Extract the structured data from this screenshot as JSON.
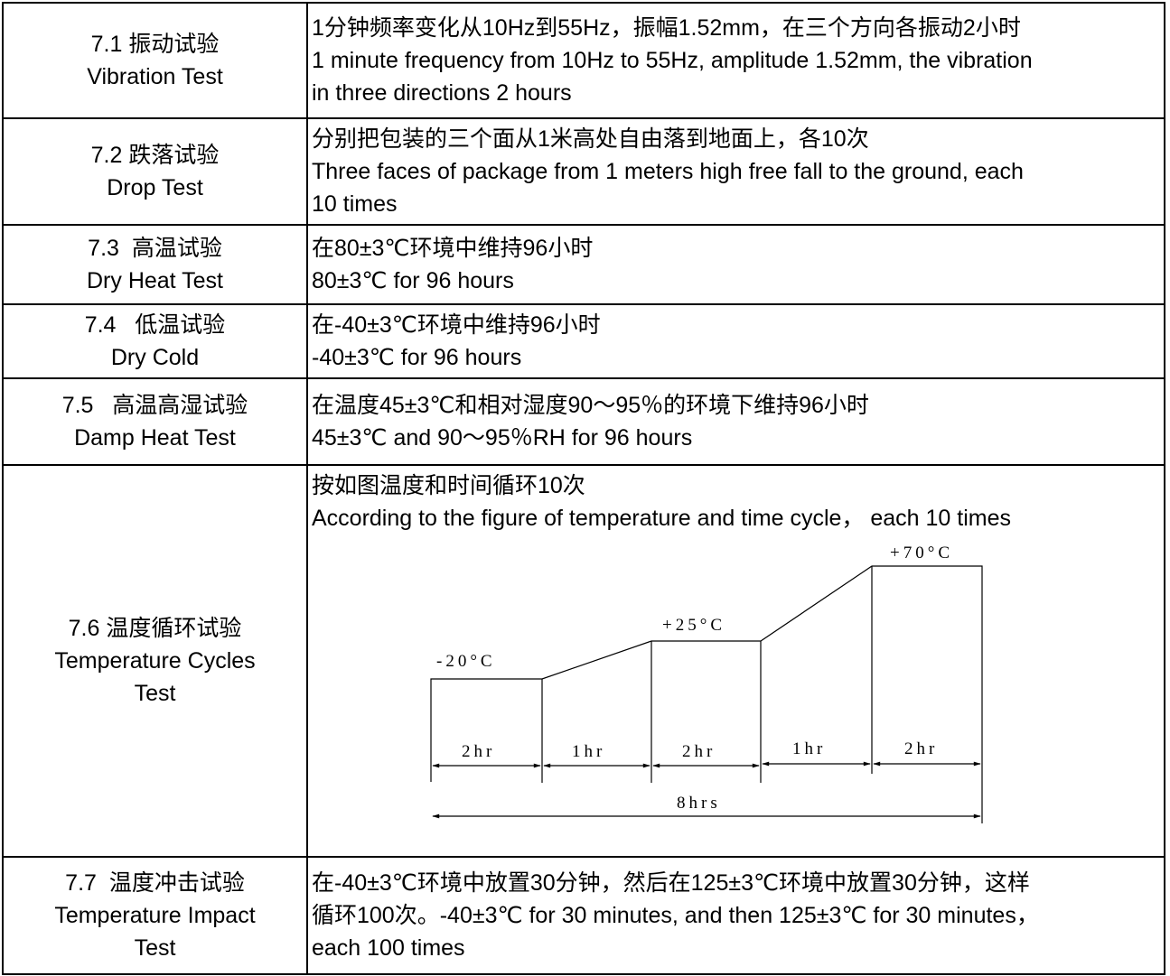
{
  "tests": [
    {
      "id": "vibration",
      "label_cn": "7.1 振动试验",
      "label_en": "Vibration Test",
      "desc_lines": [
        "1分钟频率变化从10Hz到55Hz，振幅1.52mm，在三个方向各振动2小时",
        "1 minute frequency from 10Hz to 55Hz, amplitude 1.52mm, the vibration",
        "in three directions 2 hours"
      ]
    },
    {
      "id": "drop",
      "label_cn": "7.2 跌落试验",
      "label_en": "Drop Test",
      "desc_lines": [
        "分别把包装的三个面从1米高处自由落到地面上，各10次",
        "Three faces of package from 1 meters high free fall to the ground, each",
        "10 times"
      ]
    },
    {
      "id": "dry-heat",
      "label_cn": "7.3  高温试验",
      "label_en": "Dry Heat Test",
      "desc_lines": [
        "在80±3℃环境中维持96小时",
        "80±3℃ for 96 hours"
      ]
    },
    {
      "id": "dry-cold",
      "label_cn": "7.4   低温试验",
      "label_en": "Dry Cold",
      "desc_lines": [
        "在-40±3℃环境中维持96小时",
        "-40±3℃ for 96 hours"
      ]
    },
    {
      "id": "damp-heat",
      "label_cn": "7.5   高温高湿试验",
      "label_en": "Damp Heat Test",
      "desc_lines": [
        "在温度45±3℃和相对湿度90～95％的环境下维持96小时",
        "45±3℃ and 90～95％RH for 96 hours"
      ]
    },
    {
      "id": "temp-cycles",
      "label_cn": "7.6 温度循环试验",
      "label_en_lines": [
        "Temperature Cycles",
        "Test"
      ],
      "desc_lines": [
        "按如图温度和时间循环10次",
        "According to the figure of temperature and time cycle， each 10 times"
      ],
      "figure": {
        "levels": [
          "-20°C",
          "+25°C",
          "+70°C"
        ],
        "segments": [
          "2hr",
          "1hr",
          "2hr",
          "1hr",
          "2hr"
        ],
        "total": "8hrs"
      }
    },
    {
      "id": "temp-impact",
      "label_cn": "7.7  温度冲击试验",
      "label_en_lines": [
        "Temperature Impact",
        "Test"
      ],
      "desc_lines": [
        "在-40±3℃环境中放置30分钟，然后在125±3℃环境中放置30分钟，这样",
        "循环100次。-40±3℃ for 30 minutes, and then 125±3℃ for 30 minutes，",
        "each 100 times"
      ]
    }
  ]
}
